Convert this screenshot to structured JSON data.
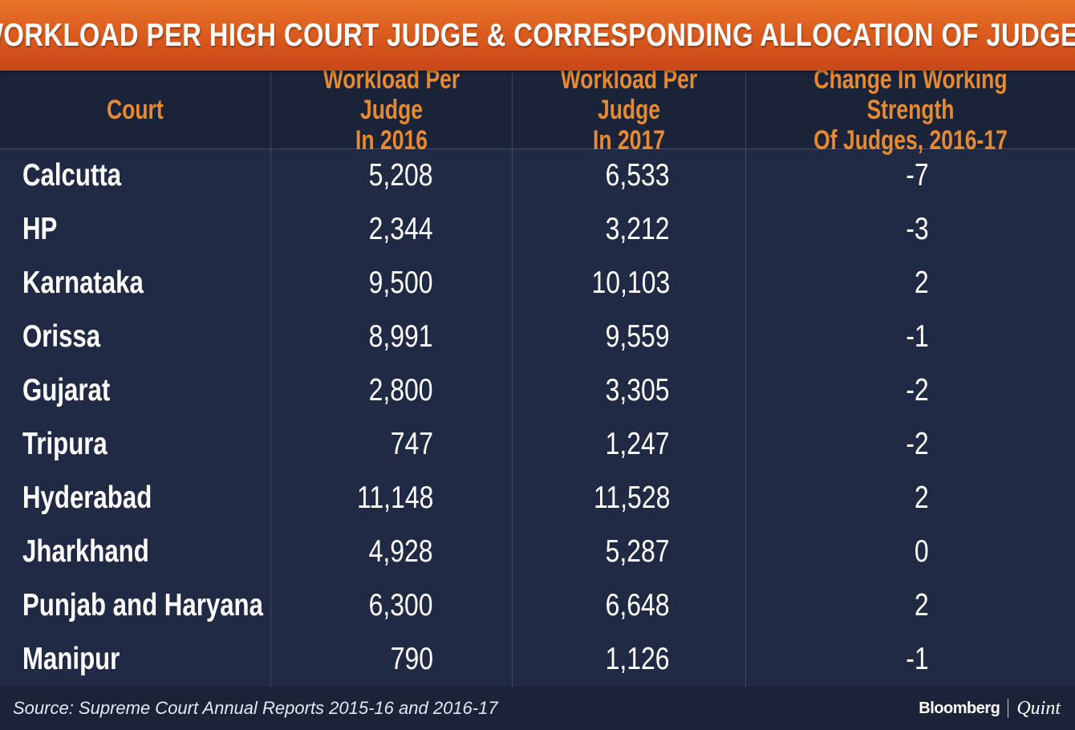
{
  "title": "WORKLOAD PER HIGH COURT JUDGE & CORRESPONDING ALLOCATION OF JUDGES",
  "colors": {
    "banner": "#d9581c",
    "header_text": "#e58a32",
    "background": "#202a44",
    "body_text": "#ffffff"
  },
  "chart_data": {
    "type": "table",
    "title": "WORKLOAD PER HIGH COURT JUDGE & CORRESPONDING ALLOCATION OF JUDGES",
    "columns": [
      "Court",
      "Workload Per Judge\nIn 2016",
      "Workload Per Judge\nIn 2017",
      "Change In Working Strength\nOf Judges, 2016-17"
    ],
    "rows": [
      [
        "Calcutta",
        "5,208",
        "6,533",
        "-7"
      ],
      [
        "HP",
        "2,344",
        "3,212",
        "-3"
      ],
      [
        "Karnataka",
        "9,500",
        "10,103",
        "2"
      ],
      [
        "Orissa",
        "8,991",
        "9,559",
        "-1"
      ],
      [
        "Gujarat",
        "2,800",
        "3,305",
        "-2"
      ],
      [
        "Tripura",
        "747",
        "1,247",
        "-2"
      ],
      [
        "Hyderabad",
        "11,148",
        "11,528",
        "2"
      ],
      [
        "Jharkhand",
        "4,928",
        "5,287",
        "0"
      ],
      [
        "Punjab and Haryana",
        "6,300",
        "6,648",
        "2"
      ],
      [
        "Manipur",
        "790",
        "1,126",
        "-1"
      ]
    ]
  },
  "footer": {
    "source": "Source: Supreme Court Annual Reports 2015-16 and 2016-17",
    "brand_primary": "Bloomberg",
    "brand_secondary": "Quint"
  }
}
